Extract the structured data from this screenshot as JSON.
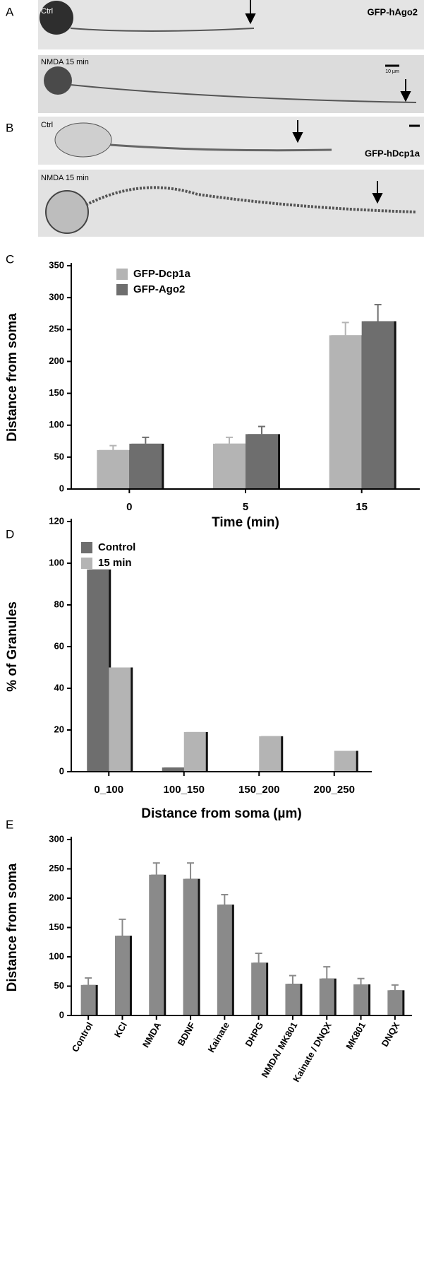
{
  "panels": [
    {
      "label": "A",
      "top_caption": "Ctrl",
      "marker": "GFP-hAgo2",
      "bottom_caption": "NMDA 15 min",
      "scale_bar": "10 µm"
    },
    {
      "label": "B",
      "top_caption": "Ctrl",
      "marker": "GFP-hDcp1a",
      "bottom_caption": "NMDA 15 min"
    }
  ],
  "chart_data": [
    {
      "type": "bar",
      "label": "C",
      "ylabel": "Distance from soma",
      "xlabel": "Time (min)",
      "categories": [
        "0",
        "5",
        "15"
      ],
      "series": [
        {
          "name": "GFP-Dcp1a",
          "color": "#b4b4b4",
          "values": [
            61,
            71,
            241
          ],
          "errors": [
            7,
            10,
            20
          ]
        },
        {
          "name": "GFP-Ago2",
          "color": "#6e6e6e",
          "values": [
            71,
            86,
            263
          ],
          "errors": [
            10,
            12,
            26
          ]
        }
      ],
      "ylim": [
        0,
        350
      ],
      "yticks": [
        0,
        50,
        100,
        150,
        200,
        250,
        300,
        350
      ],
      "legend": "top-left"
    },
    {
      "type": "bar",
      "label": "D",
      "ylabel": "% of Granules",
      "xlabel": "Distance from soma (µm)",
      "categories": [
        "0_100",
        "100_150",
        "150_200",
        "200_250"
      ],
      "series": [
        {
          "name": "Control",
          "color": "#6e6e6e",
          "values": [
            97,
            2,
            0,
            0
          ]
        },
        {
          "name": "15 min",
          "color": "#b4b4b4",
          "values": [
            50,
            19,
            17,
            10
          ]
        }
      ],
      "ylim": [
        0,
        120
      ],
      "yticks": [
        0,
        20,
        40,
        60,
        80,
        100,
        120
      ],
      "legend": "top-left"
    },
    {
      "type": "bar",
      "label": "E",
      "ylabel": "Distance from soma",
      "categories": [
        "Control",
        "KCl",
        "NMDA",
        "BDNF",
        "Kainate",
        "DHPG",
        "NMDA/ MK801",
        "Kainate / DNQX",
        "MK801",
        "DNQX"
      ],
      "values": [
        52,
        136,
        240,
        233,
        189,
        90,
        54,
        63,
        53,
        43
      ],
      "errors": [
        12,
        28,
        20,
        27,
        17,
        16,
        14,
        20,
        10,
        9
      ],
      "color": "#8a8a8a",
      "ylim": [
        0,
        300
      ],
      "yticks": [
        0,
        50,
        100,
        150,
        200,
        250,
        300
      ]
    }
  ]
}
